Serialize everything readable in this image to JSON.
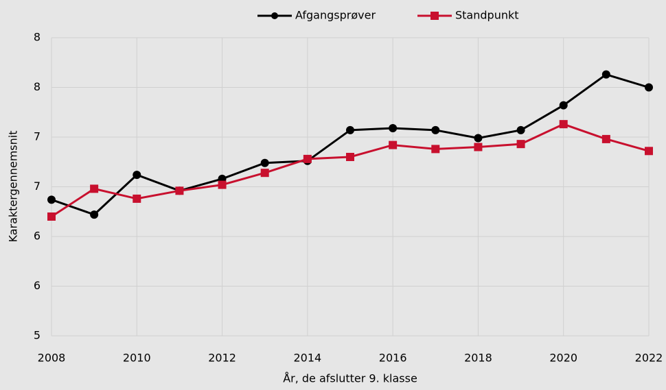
{
  "chart_data": {
    "type": "line",
    "x_label": "År, de afslutter 9. klasse",
    "y_label": "Karaktergennemsnit",
    "x": [
      2008,
      2009,
      2010,
      2011,
      2012,
      2013,
      2014,
      2015,
      2016,
      2017,
      2018,
      2019,
      2020,
      2021,
      2022
    ],
    "series": [
      {
        "name": "Afgangsprøver",
        "color": "#000000",
        "marker": "circle",
        "values": [
          6.37,
          6.22,
          6.62,
          6.46,
          6.58,
          6.74,
          6.76,
          7.07,
          7.09,
          7.07,
          6.99,
          7.07,
          7.32,
          7.63,
          7.5
        ]
      },
      {
        "name": "Standpunkt",
        "color": "#c8102e",
        "marker": "square",
        "values": [
          6.2,
          6.48,
          6.38,
          6.46,
          6.52,
          6.64,
          6.78,
          6.8,
          6.92,
          6.88,
          6.9,
          6.93,
          7.13,
          6.98,
          6.86
        ]
      }
    ],
    "xlim": [
      2008,
      2022
    ],
    "xticks": [
      2008,
      2010,
      2012,
      2014,
      2016,
      2018,
      2020,
      2022
    ],
    "ylim": [
      5,
      8
    ],
    "yticks": [
      5,
      {
        "value": 5.5,
        "label": "6"
      },
      6,
      {
        "value": 6.5,
        "label": "7"
      },
      7,
      {
        "value": 7.5,
        "label": "8"
      },
      8
    ],
    "grid": true,
    "legend": "top"
  }
}
